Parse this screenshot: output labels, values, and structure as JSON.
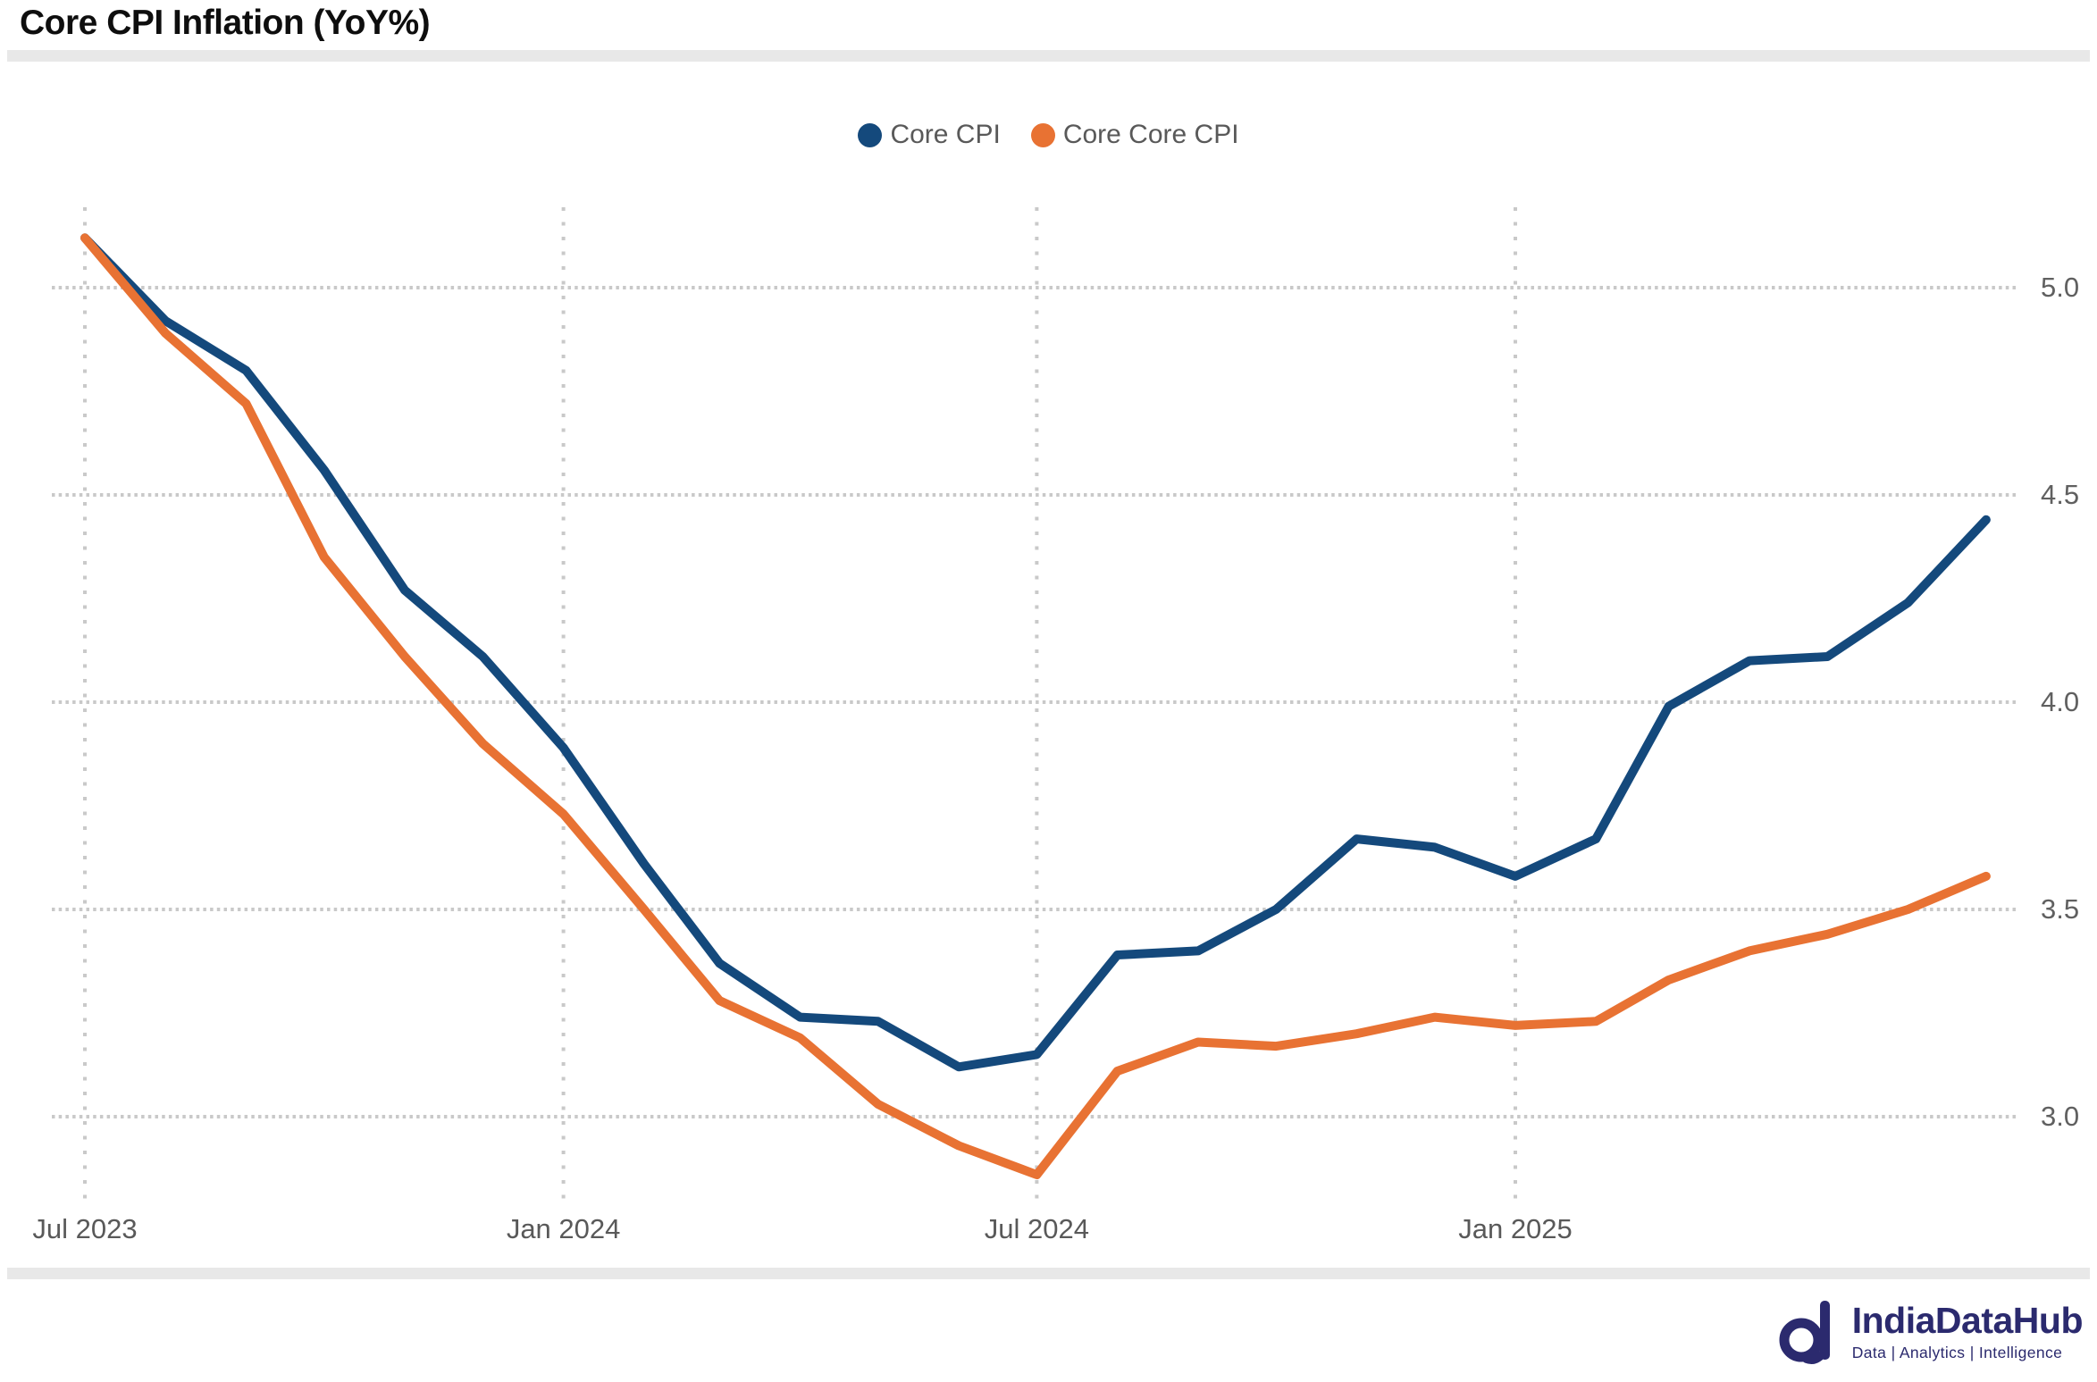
{
  "title": "Core CPI Inflation (YoY%)",
  "legend": [
    {
      "label": "Core CPI",
      "color": "#14497C"
    },
    {
      "label": "Core Core CPI",
      "color": "#E87233"
    }
  ],
  "chart_data": {
    "type": "line",
    "x": [
      "Jul 2023",
      "Aug 2023",
      "Sep 2023",
      "Oct 2023",
      "Nov 2023",
      "Dec 2023",
      "Jan 2024",
      "Feb 2024",
      "Mar 2024",
      "Apr 2024",
      "May 2024",
      "Jun 2024",
      "Jul 2024",
      "Aug 2024",
      "Sep 2024",
      "Oct 2024",
      "Nov 2024",
      "Dec 2024",
      "Jan 2025",
      "Feb 2025",
      "Mar 2025",
      "Apr 2025",
      "May 2025",
      "Jun 2025",
      "Jul 2025"
    ],
    "series": [
      {
        "name": "Core CPI",
        "color": "#14497C",
        "values": [
          5.12,
          4.92,
          4.8,
          4.56,
          4.27,
          4.11,
          3.89,
          3.61,
          3.37,
          3.24,
          3.23,
          3.12,
          3.15,
          3.39,
          3.4,
          3.5,
          3.67,
          3.65,
          3.58,
          3.67,
          3.99,
          4.1,
          4.11,
          4.24,
          4.44
        ]
      },
      {
        "name": "Core Core CPI",
        "color": "#E87233",
        "values": [
          5.12,
          4.89,
          4.72,
          4.35,
          4.11,
          3.9,
          3.73,
          3.5,
          3.28,
          3.19,
          3.03,
          2.93,
          2.86,
          3.11,
          3.18,
          3.17,
          3.2,
          3.24,
          3.22,
          3.23,
          3.33,
          3.4,
          3.44,
          3.5,
          3.58
        ]
      }
    ],
    "x_tick_labels": [
      "Jul 2023",
      "Jan 2024",
      "Jul 2024",
      "Jan 2025"
    ],
    "y_tick_labels": [
      "5.0",
      "4.5",
      "4.0",
      "3.5",
      "3.0"
    ],
    "ylim": [
      2.75,
      5.25
    ],
    "grid": "dotted",
    "gridline_color": "#c9c9c9",
    "legend_position": "top-center",
    "y_axis_side": "right",
    "xlabel": "",
    "ylabel": ""
  },
  "branding": {
    "name": "IndiaDataHub",
    "tagline": "Data | Analytics | Intelligence",
    "color": "#2b2a6e"
  }
}
